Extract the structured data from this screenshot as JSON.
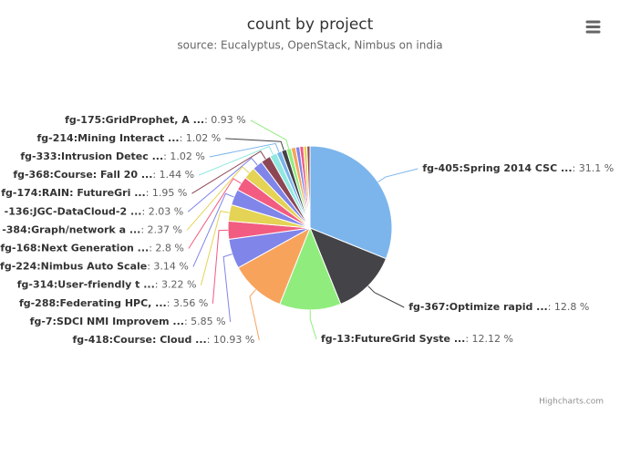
{
  "chart_data": {
    "type": "pie",
    "title": "count by project",
    "subtitle": "source: Eucalyptus, OpenStack, Nimbus on india",
    "credits": "Highcharts.com",
    "categories": [
      "fg-405:Spring 2014 CSC ...",
      "fg-367:Optimize rapid ...",
      "fg-13:FutureGrid Syste ...",
      "fg-418:Course: Cloud ...",
      "fg-7:SDCI NMI Improvem ...",
      "fg-288:Federating HPC, ...",
      "fg-314:User-friendly t ...",
      "fg-224:Nimbus Auto Scale",
      "fg-168:Next Generation ...",
      "-384:Graph/network a ...",
      "-136:JGC-DataCloud-2 ...",
      "fg-174:RAIN: FutureGri ...",
      "fg-368:Course: Fall 20 ...",
      "fg-333:Intrusion Detec ...",
      "fg-214:Mining Interact ...",
      "fg-175:GridProphet, A ...",
      null,
      null,
      null,
      null,
      null
    ],
    "values": [
      31.1,
      12.8,
      12.12,
      10.93,
      5.85,
      3.56,
      3.22,
      3.14,
      2.8,
      2.37,
      2.03,
      1.95,
      1.44,
      1.02,
      1.02,
      0.93,
      0.9,
      0.8,
      0.75,
      0.67,
      0.6
    ],
    "value_labels": [
      ": 31.1 %",
      ": 12.8 %",
      ": 12.12 %",
      ": 10.93 %",
      ": 5.85 %",
      ": 3.56 %",
      ": 3.22 %",
      ": 3.14 %",
      ": 2.8 %",
      ": 2.37 %",
      ": 2.03 %",
      ": 1.95 %",
      ": 1.44 %",
      ": 1.02 %",
      ": 1.02 %",
      ": 0.93 %",
      null,
      null,
      null,
      null,
      null
    ],
    "colors": [
      "#7cb5ec",
      "#434348",
      "#90ed7d",
      "#f7a35c",
      "#8085e9",
      "#f15c80",
      "#e4d354",
      "#8085e9",
      "#f15c80",
      "#e4d354",
      "#8085e9",
      "#8d4653",
      "#91e8e1",
      "#7cb5ec",
      "#434348",
      "#90ed7d",
      "#f7a35c",
      "#8085e9",
      "#f15c80",
      "#e4d354",
      "#8d4653"
    ]
  }
}
